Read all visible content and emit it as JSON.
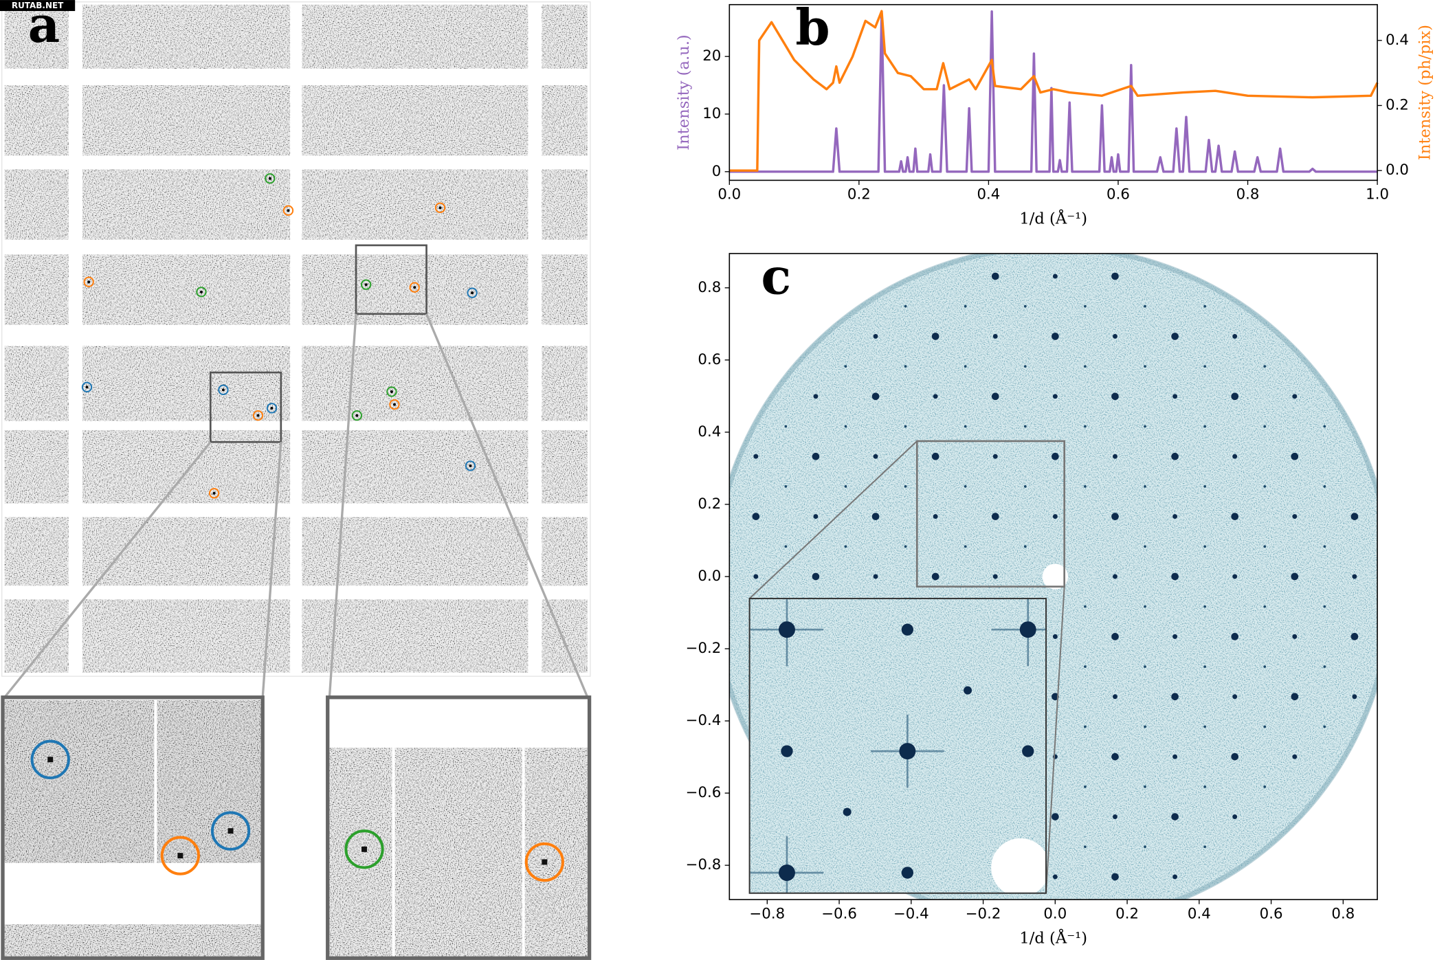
{
  "watermark": "RUTAB.NET",
  "panel_a": {
    "label": "a"
  },
  "chart_data": [
    {
      "type": "line",
      "label": "b",
      "xlabel": "1/d (Å⁻¹)",
      "ylabel": "Intensity (a.u.)",
      "y2label": "Intensity (ph/pix)",
      "xlim": [
        0,
        1
      ],
      "xticks": [
        {
          "value": 0,
          "label": "0.0"
        },
        {
          "value": 0.2,
          "label": "0.2"
        },
        {
          "value": 0.4,
          "label": "0.4"
        },
        {
          "value": 0.6,
          "label": "0.6"
        },
        {
          "value": 0.8,
          "label": "0.8"
        },
        {
          "value": 1,
          "label": "1.0"
        }
      ],
      "ylim": [
        -1.5,
        29
      ],
      "yticks": [
        0,
        10,
        20
      ],
      "y2lim": [
        -0.03,
        0.51
      ],
      "y2ticks": [
        {
          "value": 0,
          "label": "0.0"
        },
        0.2,
        0.4
      ],
      "series": [
        {
          "color": "#9467bd",
          "x": [
            0,
            0.16,
            0.165,
            0.17,
            0.23,
            0.235,
            0.24,
            0.262,
            0.265,
            0.268,
            0.272,
            0.275,
            0.278,
            0.284,
            0.287,
            0.29,
            0.307,
            0.31,
            0.313,
            0.326,
            0.331,
            0.336,
            0.366,
            0.37,
            0.374,
            0.4,
            0.405,
            0.41,
            0.466,
            0.47,
            0.474,
            0.494,
            0.497,
            0.5,
            0.507,
            0.51,
            0.513,
            0.521,
            0.525,
            0.529,
            0.571,
            0.575,
            0.579,
            0.587,
            0.59,
            0.593,
            0.597,
            0.6,
            0.603,
            0.616,
            0.62,
            0.624,
            0.66,
            0.665,
            0.67,
            0.685,
            0.69,
            0.695,
            0.7,
            0.705,
            0.71,
            0.735,
            0.74,
            0.745,
            0.75,
            0.755,
            0.76,
            0.775,
            0.78,
            0.785,
            0.81,
            0.815,
            0.82,
            0.845,
            0.85,
            0.855,
            0.895,
            0.9,
            0.905,
            1
          ],
          "values": [
            0,
            0,
            7.5,
            0,
            0,
            27.5,
            0,
            0,
            1.8,
            0,
            0,
            2.5,
            0,
            0,
            4,
            0,
            0,
            3,
            0,
            0,
            15,
            0,
            0,
            11,
            0,
            0,
            27.8,
            0,
            0,
            20.5,
            0,
            0,
            14.5,
            0,
            0,
            2,
            0,
            0,
            12,
            0,
            0,
            11.5,
            0,
            0,
            2.5,
            0,
            0,
            3,
            0,
            0,
            18.5,
            0,
            0,
            2.5,
            0,
            0,
            7.5,
            0,
            0,
            9.5,
            0,
            0,
            5.5,
            0,
            0,
            4.5,
            0,
            0,
            3.5,
            0,
            0,
            2.5,
            0,
            0,
            4,
            0,
            0,
            0.5,
            0,
            0
          ]
        },
        {
          "color": "#ff7f0e",
          "axis": "y2",
          "x": [
            0,
            0.043,
            0.046,
            0.065,
            0.1,
            0.13,
            0.15,
            0.16,
            0.165,
            0.17,
            0.19,
            0.21,
            0.225,
            0.235,
            0.24,
            0.26,
            0.28,
            0.3,
            0.32,
            0.33,
            0.34,
            0.37,
            0.38,
            0.405,
            0.41,
            0.45,
            0.47,
            0.48,
            0.5,
            0.525,
            0.575,
            0.62,
            0.63,
            0.7,
            0.75,
            0.8,
            0.9,
            0.99,
            1
          ],
          "values": [
            0,
            0,
            0.4,
            0.456,
            0.34,
            0.28,
            0.25,
            0.27,
            0.32,
            0.27,
            0.35,
            0.46,
            0.44,
            0.49,
            0.36,
            0.3,
            0.29,
            0.25,
            0.25,
            0.33,
            0.25,
            0.28,
            0.25,
            0.34,
            0.26,
            0.25,
            0.29,
            0.24,
            0.25,
            0.24,
            0.23,
            0.26,
            0.23,
            0.24,
            0.245,
            0.23,
            0.225,
            0.23,
            0.27
          ]
        }
      ]
    },
    {
      "type": "image",
      "label": "c",
      "xlabel": "1/d (Å⁻¹)",
      "xlim": [
        -0.905,
        0.895
      ],
      "xticks": [
        {
          "value": -0.8,
          "label": "−0.8"
        },
        {
          "value": -0.6,
          "label": "−0.6"
        },
        {
          "value": -0.4,
          "label": "−0.4"
        },
        {
          "value": -0.2,
          "label": "−0.2"
        },
        {
          "value": 0,
          "label": "0.0"
        },
        0.2,
        0.4,
        0.6,
        0.8
      ],
      "ylim": [
        -0.895,
        0.895
      ],
      "yticks": [
        {
          "value": -0.8,
          "label": "−0.8"
        },
        {
          "value": -0.6,
          "label": "−0.6"
        },
        {
          "value": -0.4,
          "label": "−0.4"
        },
        {
          "value": -0.2,
          "label": "−0.2"
        },
        {
          "value": 0,
          "label": "0.0"
        },
        0.2,
        0.4,
        0.6,
        0.8
      ]
    }
  ]
}
